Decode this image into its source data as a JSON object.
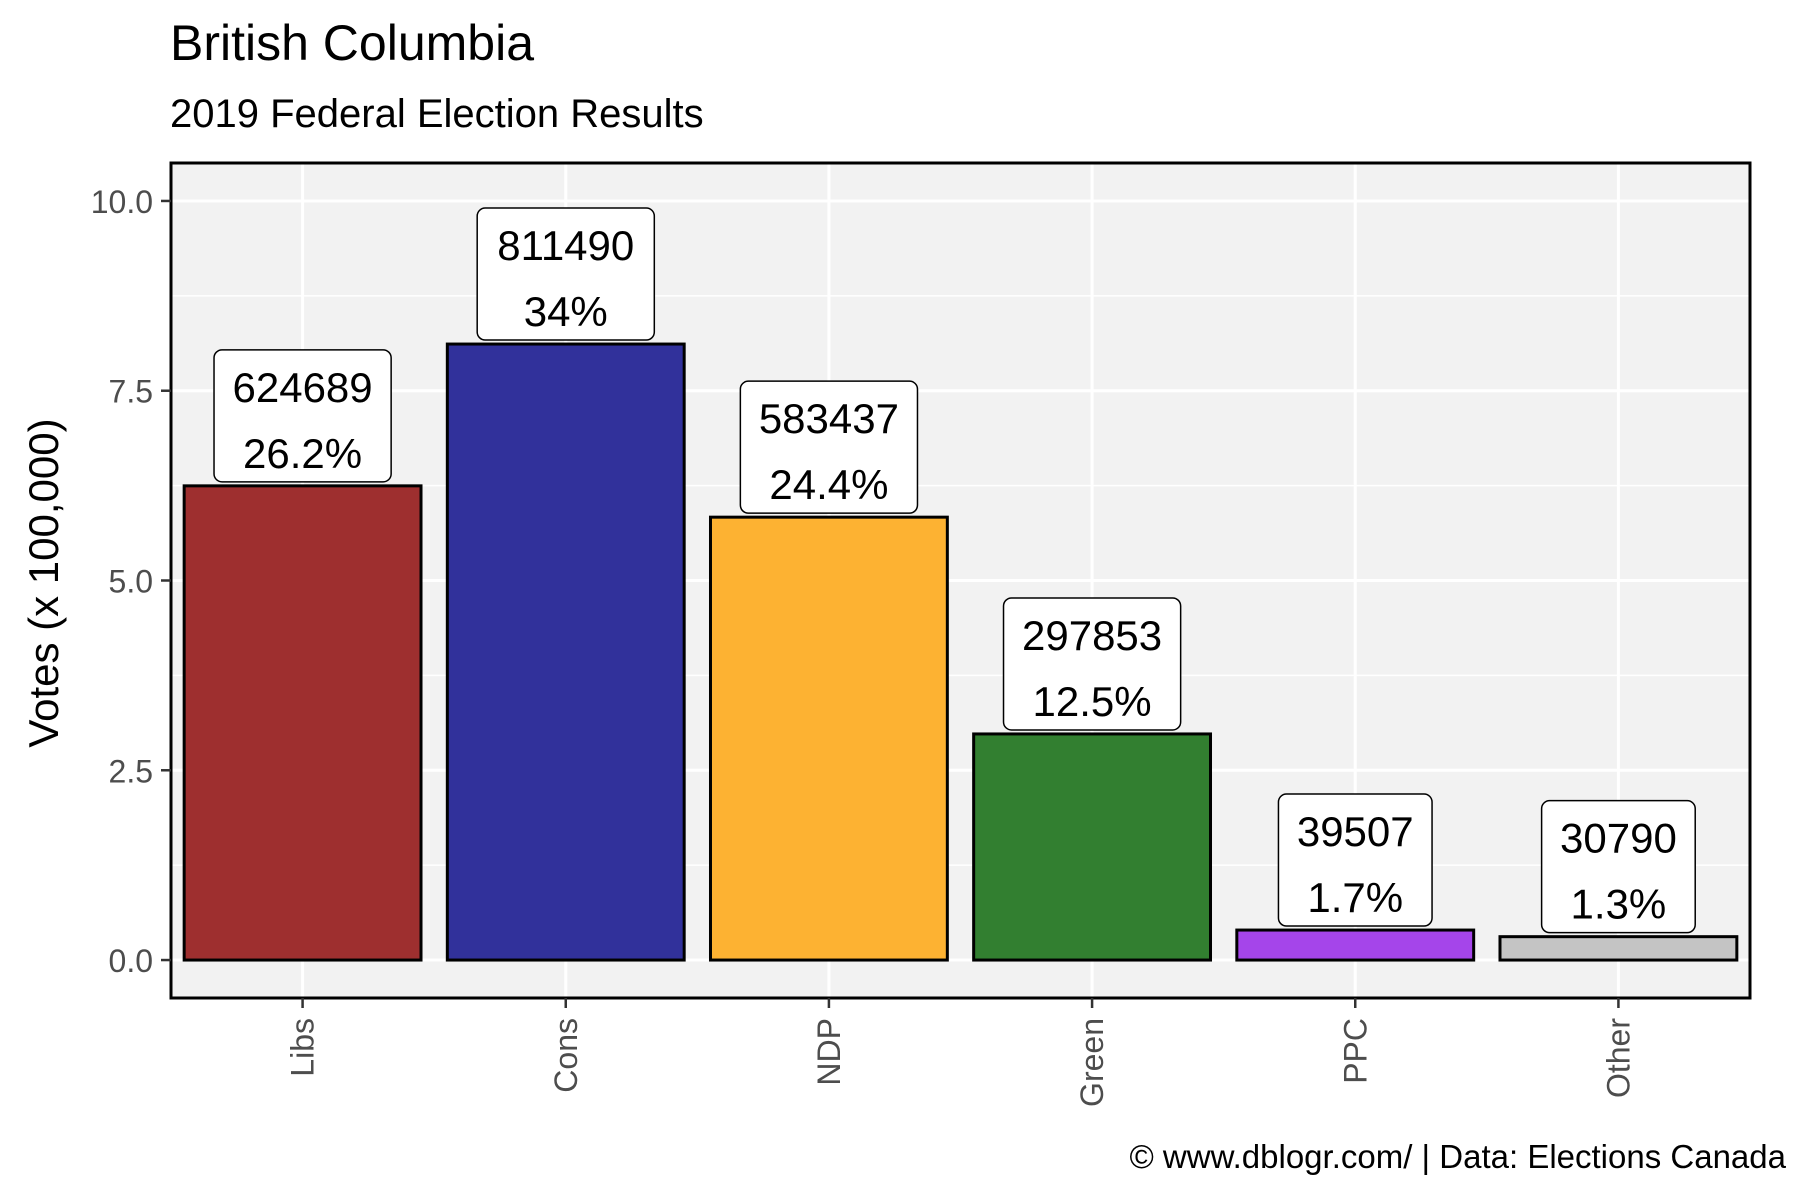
{
  "title": "British Columbia",
  "subtitle": "2019 Federal Election Results",
  "caption": "© www.dblogr.com/  |  Data: Elections Canada",
  "chart_data": {
    "type": "bar",
    "categories": [
      "Libs",
      "Cons",
      "NDP",
      "Green",
      "PPC",
      "Other"
    ],
    "values": [
      6.24689,
      8.1149,
      5.83437,
      2.97853,
      0.39507,
      0.3079
    ],
    "value_labels": [
      "624689",
      "811490",
      "583437",
      "297853",
      "39507",
      "30790"
    ],
    "percent_labels": [
      "26.2%",
      "34%",
      "24.4%",
      "12.5%",
      "1.7%",
      "1.3%"
    ],
    "colors": [
      "#9e2f2f",
      "#31319b",
      "#fdb232",
      "#327f30",
      "#a545ea",
      "#c4c4c4"
    ],
    "ylabel": "Votes (x 100,000)",
    "xlabel": "",
    "ylim": [
      -0.5,
      10.5
    ],
    "yticks": [
      0,
      2.5,
      5,
      7.5,
      10
    ],
    "ytick_labels": [
      "0.0",
      "2.5",
      "5.0",
      "7.5",
      "10.0"
    ],
    "grid": true,
    "panel_background": "#f2f2f2"
  }
}
